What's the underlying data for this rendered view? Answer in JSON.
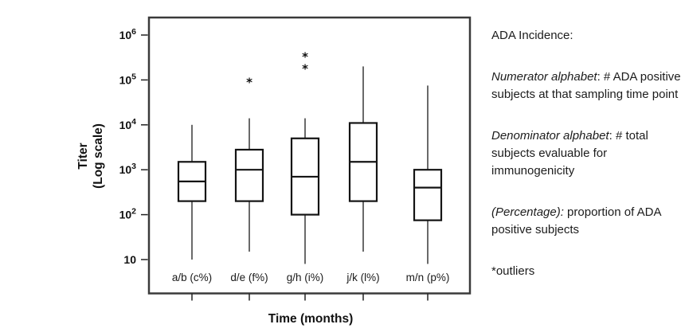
{
  "chart_data": {
    "type": "boxplot",
    "title": "",
    "xlabel": "Time (months)",
    "ylabel_line1": "Titer",
    "ylabel_line2": "(Log scale)",
    "y_scale": "log10",
    "ylim": [
      3,
      2500000
    ],
    "grid": false,
    "y_ticks": [
      {
        "value": 1000000,
        "base": "10",
        "exp": "6"
      },
      {
        "value": 100000,
        "base": "10",
        "exp": "5"
      },
      {
        "value": 10000,
        "base": "10",
        "exp": "4"
      },
      {
        "value": 1000,
        "base": "10",
        "exp": "3"
      },
      {
        "value": 100,
        "base": "10",
        "exp": "2"
      },
      {
        "value": 10,
        "base": "10",
        "exp": ""
      }
    ],
    "categories": [
      "a/b (c%)",
      "d/e (f%)",
      "g/h (i%)",
      "j/k (l%)",
      "m/n (p%)"
    ],
    "series": [
      {
        "category": "a/b (c%)",
        "whisker_low": 10,
        "q1": 200,
        "median": 550,
        "q3": 1500,
        "whisker_high": 10000,
        "outliers": []
      },
      {
        "category": "d/e (f%)",
        "whisker_low": 15,
        "q1": 200,
        "median": 1000,
        "q3": 2800,
        "whisker_high": 14000,
        "outliers": [
          100000
        ]
      },
      {
        "category": "g/h (i%)",
        "whisker_low": 8,
        "q1": 100,
        "median": 700,
        "q3": 5000,
        "whisker_high": 14000,
        "outliers": [
          200000,
          370000
        ]
      },
      {
        "category": "j/k (l%)",
        "whisker_low": 15,
        "q1": 200,
        "median": 1500,
        "q3": 11000,
        "whisker_high": 200000,
        "outliers": []
      },
      {
        "category": "m/n (p%)",
        "whisker_low": 8,
        "q1": 75,
        "median": 400,
        "q3": 1000,
        "whisker_high": 75000,
        "outliers": []
      }
    ],
    "outlier_marker": "*"
  },
  "annotation": {
    "title": "ADA Incidence:",
    "items": [
      {
        "lead": "Numerator alphabet",
        "rest": ": # ADA positive  subjects at that sampling time point"
      },
      {
        "lead": "Denominator alphabet",
        "rest": ": # total subjects evaluable for immunogenicity"
      },
      {
        "lead": "(Percentage):",
        "rest": " proportion of ADA positive subjects"
      }
    ],
    "footnote": "*outliers"
  },
  "colors": {
    "frame": "#3a3a3a",
    "box_stroke": "#141414",
    "whisker": "#2a2a2a",
    "text": "#1c1c1c",
    "background": "#ffffff"
  }
}
